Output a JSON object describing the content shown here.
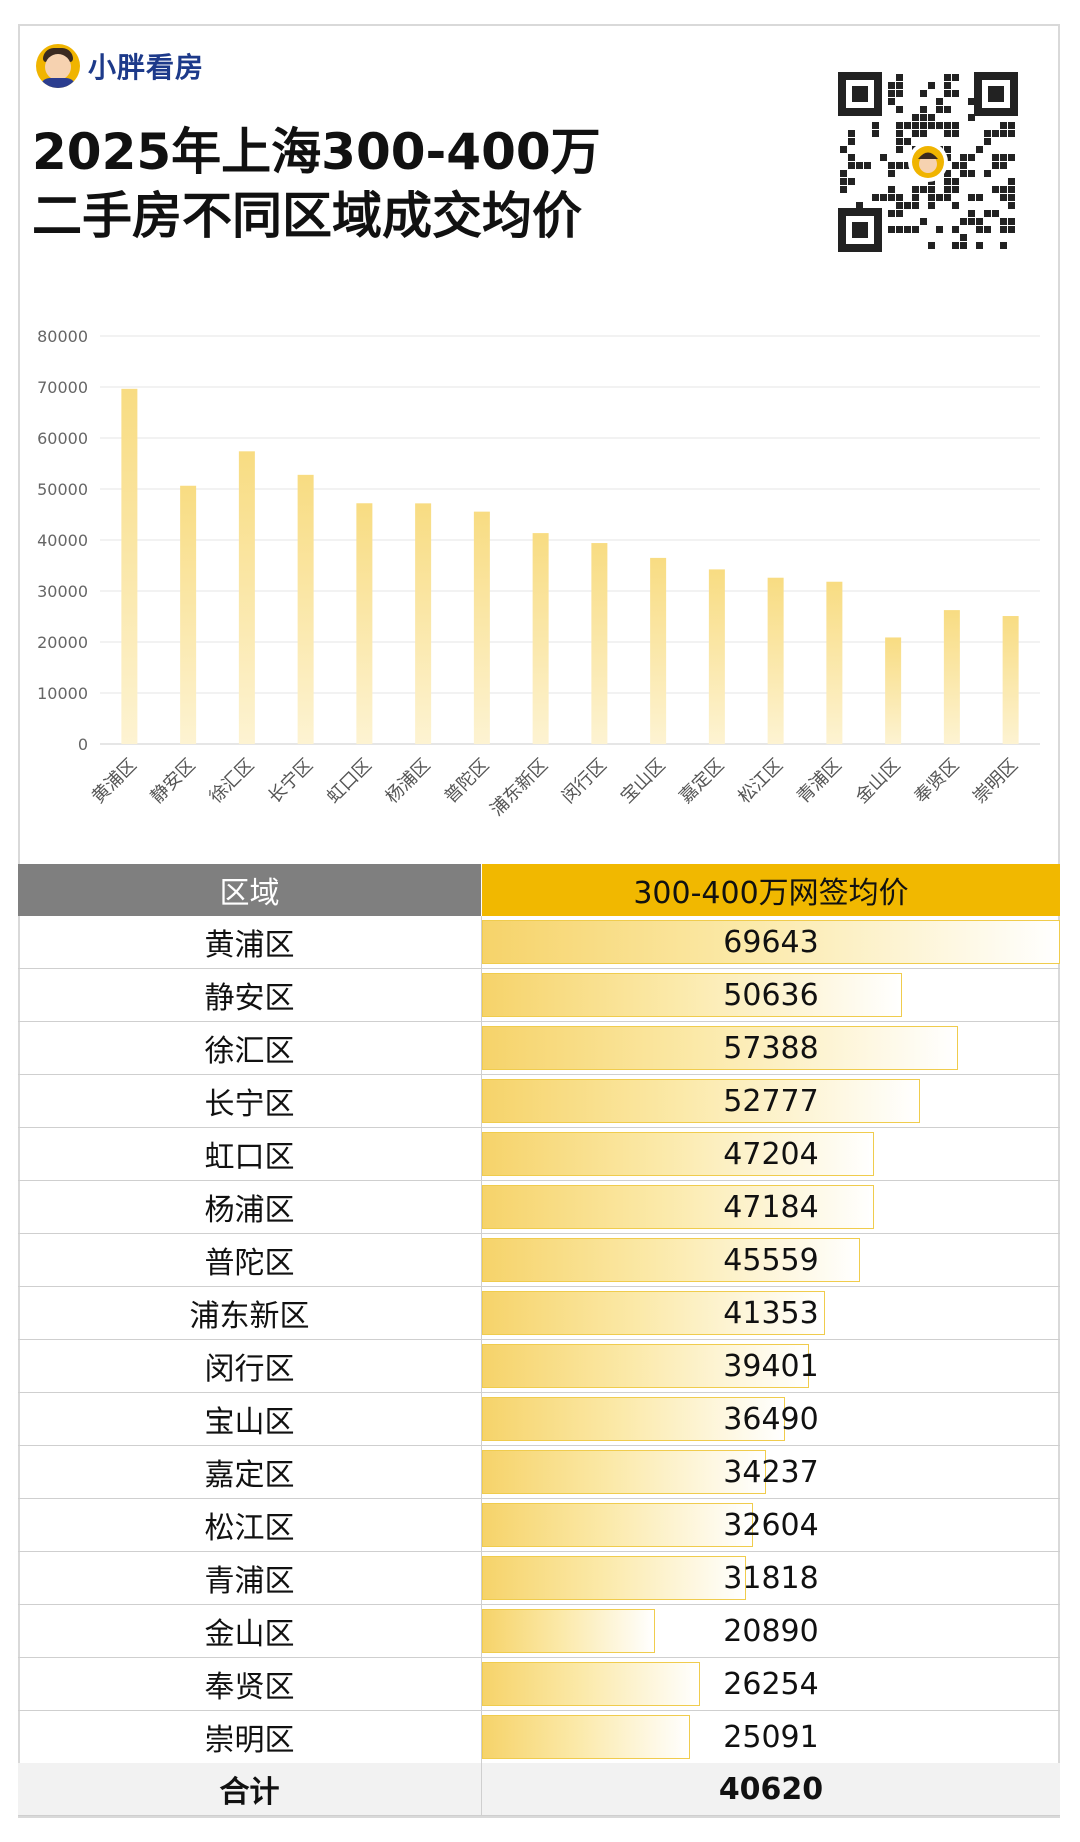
{
  "brand": {
    "name": "小胖看房"
  },
  "title_line1": "2025年上海300-400万",
  "title_line2": "二手房不同区域成交均价",
  "table": {
    "col_region": "区域",
    "col_value": "300-400万网签均价",
    "total_label": "合计",
    "total_value": "40620"
  },
  "chart_data": {
    "type": "bar",
    "categories": [
      "黄浦区",
      "静安区",
      "徐汇区",
      "长宁区",
      "虹口区",
      "杨浦区",
      "普陀区",
      "浦东新区",
      "闵行区",
      "宝山区",
      "嘉定区",
      "松江区",
      "青浦区",
      "金山区",
      "奉贤区",
      "崇明区"
    ],
    "values": [
      69643,
      50636,
      57388,
      52777,
      47204,
      47184,
      45559,
      41353,
      39401,
      36490,
      34237,
      32604,
      31818,
      20890,
      26254,
      25091
    ],
    "yticks": [
      "0",
      "10000",
      "20000",
      "30000",
      "40000",
      "50000",
      "60000",
      "70000",
      "80000"
    ],
    "ylim": [
      0,
      80000
    ],
    "grid": true,
    "bar_color": "#f8dc82"
  }
}
